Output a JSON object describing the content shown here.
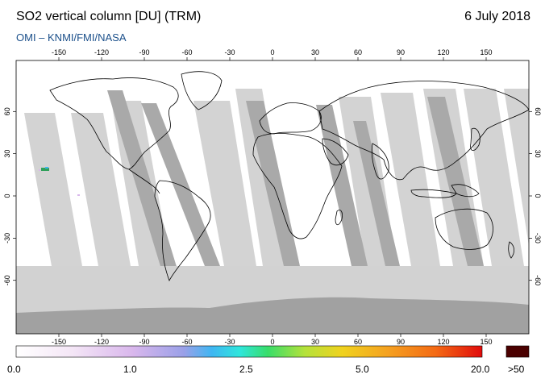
{
  "header": {
    "title": "SO2 vertical column [DU] (TRM)",
    "date": "6 July 2018",
    "credit": "OMI  –  KNMI/FMI/NASA"
  },
  "axes": {
    "lon_ticks": [
      "-150",
      "-120",
      "-90",
      "-60",
      "-30",
      "0",
      "30",
      "60",
      "90",
      "120",
      "150"
    ],
    "lat_ticks": [
      "60",
      "30",
      "0",
      "-30",
      "-60"
    ]
  },
  "colorbar": {
    "labels": [
      "0.0",
      "1.0",
      "2.5",
      "5.0",
      "20.0"
    ],
    "overflow_label": ">50",
    "overflow_color": "#4a0000"
  },
  "colors": {
    "no_data": "#d2d2d2",
    "swath_dark": "#a8a8a8",
    "antarctica": "#a0a0a0"
  }
}
